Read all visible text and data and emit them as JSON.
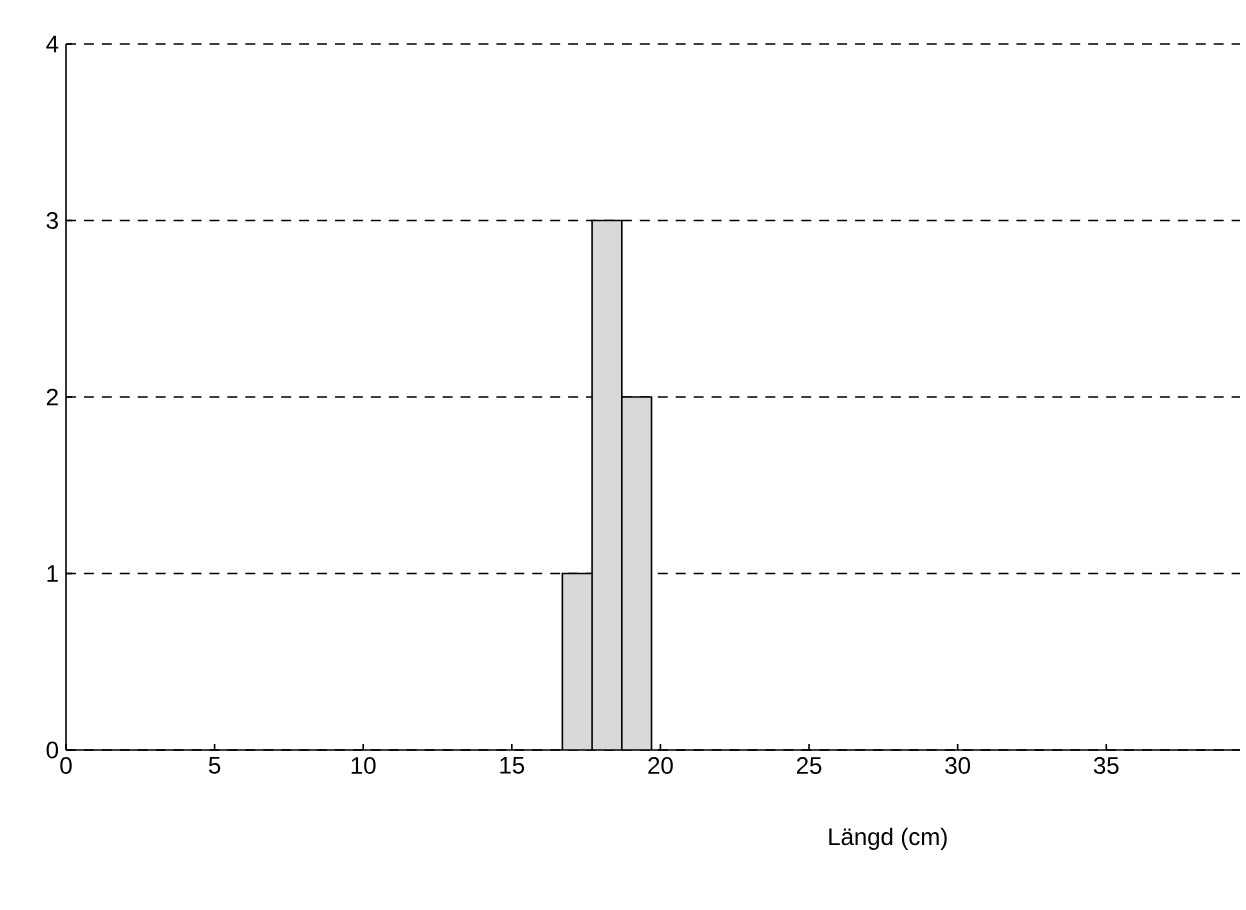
{
  "chart_data": {
    "type": "histogram",
    "xlabel": "Längd (cm)",
    "bins": [
      16.7,
      17.7,
      18.7,
      19.7
    ],
    "values": [
      1,
      3,
      2
    ],
    "color": "#d9d9d9",
    "xlim": [
      0,
      39.5
    ],
    "ylim": [
      0,
      4
    ],
    "xticks": [
      0,
      5,
      10,
      15,
      20,
      25,
      30,
      35
    ],
    "yticks": [
      0,
      1,
      2,
      3,
      4
    ],
    "grid": "y"
  }
}
